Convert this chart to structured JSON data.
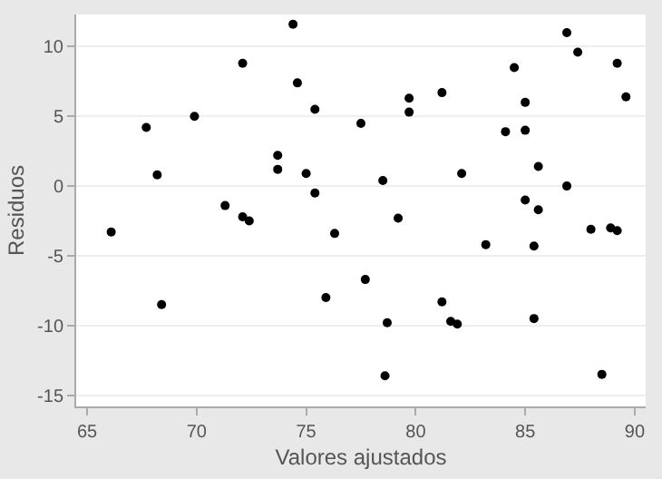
{
  "chart_data": {
    "type": "scatter",
    "xlabel": "Valores ajustados",
    "ylabel": "Residuos",
    "x": [
      66.1,
      67.7,
      68.2,
      68.4,
      69.9,
      71.3,
      72.1,
      72.1,
      72.4,
      73.7,
      73.7,
      74.4,
      74.6,
      75.0,
      75.4,
      75.4,
      75.9,
      76.3,
      77.5,
      77.7,
      78.5,
      78.6,
      78.7,
      79.2,
      79.7,
      79.7,
      81.2,
      81.2,
      81.6,
      81.9,
      82.1,
      83.2,
      84.1,
      84.5,
      85.0,
      85.0,
      85.0,
      85.4,
      85.4,
      85.6,
      85.6,
      86.9,
      86.9,
      87.4,
      88.0,
      88.5,
      88.9,
      89.2,
      89.2,
      89.6
    ],
    "values": [
      -3.3,
      4.2,
      0.8,
      -8.5,
      5.0,
      -1.4,
      8.8,
      -2.2,
      -2.5,
      2.2,
      1.2,
      11.6,
      7.4,
      0.9,
      5.5,
      -0.5,
      -8.0,
      -3.4,
      4.5,
      -6.7,
      0.4,
      -13.6,
      -9.8,
      -2.3,
      6.3,
      5.3,
      6.7,
      -8.3,
      -9.7,
      -9.9,
      0.9,
      -4.2,
      3.9,
      8.5,
      6.0,
      4.0,
      -1.0,
      -4.3,
      -9.5,
      1.4,
      -1.7,
      11.0,
      0.0,
      9.6,
      -3.1,
      -13.5,
      -3.0,
      -3.2,
      8.8,
      6.4
    ],
    "color": "#000000",
    "marker": "circle",
    "xlim": [
      64.5,
      90.5
    ],
    "xticks": [
      65,
      70,
      75,
      80,
      85,
      90
    ],
    "ylim": [
      -15.8,
      12.3
    ],
    "yticks": [
      -15,
      -10,
      -5,
      0,
      5,
      10
    ],
    "grid": "y",
    "legend": false
  }
}
